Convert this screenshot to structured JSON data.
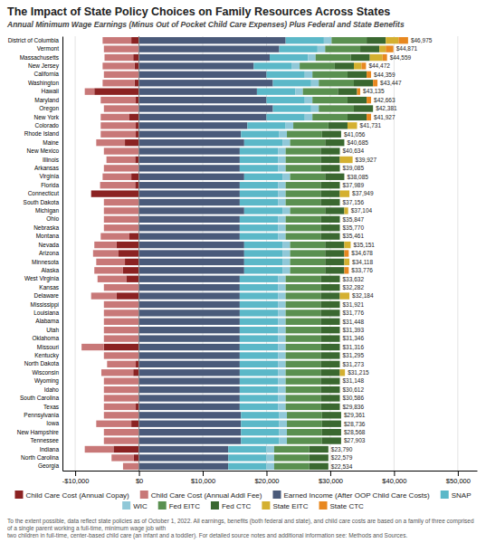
{
  "chart_data": {
    "type": "bar",
    "orientation": "horizontal",
    "stacked": true,
    "grid": true,
    "legend": "bottom",
    "title": "The Impact of State Policy Choices on Family Resources Across States",
    "subtitle": "Annual Minimum Wage Earnings (Minus Out of Pocket Child Care Expenses) Plus Federal and State Benefits",
    "annotations": [
      "To the extent possible, data reflect state policies as of October 1, 2022. All earnings, benefits (both federal and state), and child care costs are based on a family of three comprised of a single parent working a full-time, minimum wage job with",
      "two children in full-time, center-based child care (an infant and a toddler). For detailed source notes and additional information see: Methods and Sources."
    ],
    "categories": [
      "District of Columbia",
      "Vermont",
      "Massachusetts",
      "New Jersey",
      "California",
      "Washington",
      "Hawaii",
      "Maryland",
      "Oregon",
      "New York",
      "Colorado",
      "Rhode Island",
      "Maine",
      "New Mexico",
      "Illinois",
      "Arkansas",
      "Virginia",
      "Florida",
      "Connecticut",
      "South Dakota",
      "Michigan",
      "Ohio",
      "Nebraska",
      "Montana",
      "Nevada",
      "Arizona",
      "Minnesota",
      "Alaska",
      "West Virginia",
      "Kansas",
      "Delaware",
      "Mississippi",
      "Louisiana",
      "Alabama",
      "Utah",
      "Oklahoma",
      "Missouri",
      "Kentucky",
      "North Dakota",
      "Wisconsin",
      "Wyoming",
      "Idaho",
      "South Carolina",
      "Texas",
      "Pennsylvania",
      "Iowa",
      "New Hampshire",
      "Tennessee",
      "Indiana",
      "North Carolina",
      "Georgia"
    ],
    "series": [
      {
        "name": "Child Care Cost (Annual Copay)",
        "color": "#8B2222",
        "values": [
          -1200,
          0,
          -900,
          -700,
          0,
          -700,
          -7000,
          -500,
          0,
          -1500,
          -500,
          -500,
          -2200,
          0,
          -600,
          0,
          -1200,
          -600,
          -7500,
          0,
          0,
          0,
          0,
          -1500,
          -3500,
          -3200,
          -2200,
          -2500,
          -2000,
          0,
          -3500,
          0,
          0,
          0,
          0,
          0,
          -5500,
          0,
          -500,
          -900,
          0,
          0,
          0,
          -500,
          0,
          -1200,
          0,
          0,
          -4000,
          -800,
          0
        ]
      },
      {
        "name": "Child Care Cost (Annual Addl Fee)",
        "color": "#C87878",
        "values": [
          -4500,
          -5500,
          -4500,
          -5000,
          -5500,
          -5000,
          -1500,
          -5500,
          -5500,
          -4500,
          -5500,
          -5500,
          -4500,
          -5500,
          -4500,
          -5500,
          -4500,
          -5500,
          0,
          -5500,
          -5500,
          -5500,
          -5500,
          -4500,
          -3500,
          -4000,
          -4500,
          -4500,
          -4500,
          -5500,
          -4000,
          -5500,
          -5500,
          -5500,
          -5500,
          -5500,
          -3500,
          -5500,
          -4500,
          -5000,
          -5500,
          -5500,
          -5500,
          -5000,
          -5500,
          -5500,
          -5500,
          -5500,
          -4500,
          -3500,
          -2500
        ]
      },
      {
        "name": "Earned Income (After OOP Child Care Costs)",
        "color": "#4A5A7A",
        "values": [
          23000,
          22000,
          20500,
          18000,
          20000,
          21000,
          18500,
          20000,
          21000,
          20000,
          17000,
          16000,
          16500,
          15800,
          15800,
          15800,
          16500,
          15800,
          15800,
          15800,
          16500,
          15800,
          15800,
          15800,
          16500,
          16500,
          16500,
          16500,
          15800,
          15800,
          15800,
          15800,
          15800,
          15800,
          15800,
          15800,
          15800,
          15800,
          15800,
          15800,
          15800,
          15800,
          15800,
          15800,
          16000,
          16000,
          16000,
          16000,
          14000,
          14000,
          14000
        ]
      },
      {
        "name": "SNAP",
        "color": "#5BB8C8",
        "values": [
          6000,
          6000,
          6000,
          6000,
          6000,
          6000,
          6000,
          6000,
          6000,
          6000,
          6000,
          6000,
          6000,
          6000,
          6000,
          6000,
          6000,
          6000,
          6000,
          6000,
          6000,
          6000,
          6000,
          6000,
          6000,
          6000,
          6000,
          6000,
          6000,
          6000,
          6000,
          6000,
          6000,
          6000,
          6000,
          6000,
          6000,
          6000,
          6000,
          6000,
          6000,
          6000,
          6000,
          6000,
          6000,
          6000,
          6000,
          6000,
          6000,
          6000,
          6000
        ]
      },
      {
        "name": "WIC",
        "color": "#90C8D8",
        "values": [
          1200,
          1200,
          1200,
          1200,
          1200,
          1200,
          1200,
          1200,
          1200,
          1200,
          1200,
          1200,
          1200,
          1200,
          1200,
          1200,
          1200,
          1200,
          1200,
          1200,
          1200,
          1200,
          1200,
          1200,
          1200,
          1200,
          1200,
          1200,
          1200,
          1200,
          1200,
          1200,
          1200,
          1200,
          1200,
          1200,
          1200,
          1200,
          1200,
          1200,
          1200,
          1200,
          1200,
          1200,
          1200,
          1200,
          1200,
          1200,
          1200,
          1200,
          1200
        ]
      },
      {
        "name": "Fed EITC",
        "color": "#5A9050",
        "values": [
          5500,
          5500,
          5500,
          5500,
          5500,
          5500,
          5500,
          5500,
          5500,
          5500,
          5500,
          5500,
          5500,
          5500,
          5500,
          5500,
          5500,
          5500,
          5500,
          5500,
          5500,
          5500,
          5500,
          5500,
          5500,
          5500,
          5500,
          5500,
          5500,
          5500,
          5500,
          5500,
          5500,
          5500,
          5500,
          5500,
          5500,
          5500,
          5500,
          5500,
          5500,
          5500,
          5500,
          5500,
          5500,
          5500,
          5500,
          5500,
          5500,
          5500,
          5500
        ]
      },
      {
        "name": "Fed CTC",
        "color": "#3A6830",
        "values": [
          3000,
          3000,
          3000,
          3000,
          3000,
          3000,
          3000,
          3000,
          3000,
          3000,
          3000,
          3000,
          3000,
          3000,
          3000,
          3000,
          3000,
          3000,
          3000,
          3000,
          3000,
          3000,
          3000,
          3000,
          3000,
          3000,
          3000,
          3000,
          3000,
          3000,
          3000,
          3000,
          3000,
          3000,
          3000,
          3000,
          3000,
          3000,
          3000,
          3000,
          3000,
          3000,
          3000,
          3000,
          3000,
          3000,
          3000,
          3000,
          3000,
          3000,
          3000
        ]
      },
      {
        "name": "State EITC",
        "color": "#D4B030",
        "values": [
          2000,
          1000,
          2000,
          1200,
          0,
          0,
          0,
          0,
          0,
          0,
          1500,
          0,
          0,
          0,
          2000,
          0,
          0,
          0,
          1500,
          0,
          600,
          0,
          0,
          0,
          1000,
          0,
          800,
          0,
          0,
          0,
          1500,
          0,
          0,
          0,
          0,
          0,
          0,
          0,
          0,
          800,
          0,
          0,
          0,
          0,
          0,
          0,
          0,
          0,
          0,
          0,
          0
        ]
      },
      {
        "name": "State CTC",
        "color": "#E88820",
        "values": [
          1500,
          1200,
          700,
          700,
          700,
          700,
          500,
          700,
          0,
          700,
          0,
          0,
          0,
          0,
          0,
          0,
          0,
          0,
          0,
          0,
          0,
          0,
          0,
          0,
          0,
          700,
          0,
          700,
          0,
          0,
          0,
          0,
          0,
          0,
          0,
          0,
          0,
          0,
          0,
          0,
          0,
          0,
          0,
          0,
          0,
          0,
          0,
          0,
          0,
          0,
          0
        ]
      }
    ],
    "totals": {
      "values": [
        46975,
        44871,
        44559,
        44472,
        44359,
        43447,
        43135,
        42663,
        42381,
        41927,
        41731,
        41056,
        40685,
        40634,
        39927,
        39085,
        38085,
        37989,
        37949,
        37156,
        37104,
        35847,
        35770,
        35461,
        35151,
        34678,
        34118,
        33776,
        33632,
        32282,
        32184,
        31921,
        31776,
        31448,
        31393,
        31346,
        31316,
        31295,
        31273,
        31215,
        31148,
        30612,
        30586,
        29836,
        29361,
        28736,
        28568,
        27903,
        23790,
        22579,
        22534
      ],
      "value_labels": [
        "$46,975",
        "$44,871",
        "$44,559",
        "$44,472",
        "$44,359",
        "$43,447",
        "$43,135",
        "$42,663",
        "$42,381",
        "$41,927",
        "$41,731",
        "$41,056",
        "$40,685",
        "$40,634",
        "$39,927",
        "$39,085",
        "$38,085",
        "$37,989",
        "$37,949",
        "$37,156",
        "$37,104",
        "$35,847",
        "$35,770",
        "$35,461",
        "$35,151",
        "$34,678",
        "$34,118",
        "$33,776",
        "$33,632",
        "$32,282",
        "$32,184",
        "$31,921",
        "$31,776",
        "$31,448",
        "$31,393",
        "$31,346",
        "$31,316",
        "$31,295",
        "$31,273",
        "$31,215",
        "$31,148",
        "$30,612",
        "$30,586",
        "$29,836",
        "$29,361",
        "$28,736",
        "$28,568",
        "$27,903",
        "$23,790",
        "$22,579",
        "$22,534"
      ]
    },
    "xlim": [
      -12000,
      53000
    ],
    "xticks": [
      {
        "value": -10000,
        "label": "-$10,000"
      },
      {
        "value": 0,
        "label": "$0"
      },
      {
        "value": 10000,
        "label": "$10,000"
      },
      {
        "value": 20000,
        "label": "$20,000"
      },
      {
        "value": 30000,
        "label": "$30,000"
      },
      {
        "value": 40000,
        "label": "$40,000"
      },
      {
        "value": 50000,
        "label": "$50,000"
      }
    ]
  }
}
